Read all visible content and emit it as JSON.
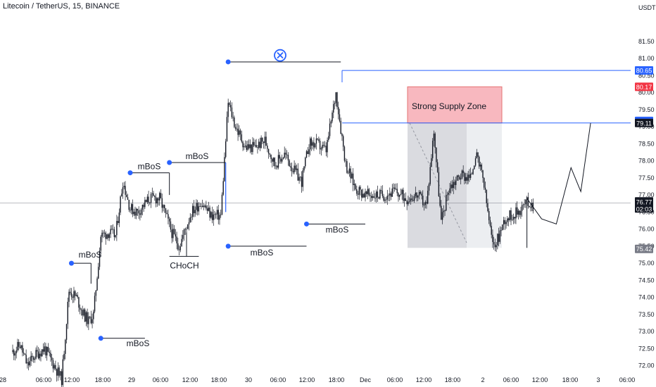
{
  "header": {
    "title": "Litecoin / TetherUS, 15, BINANCE"
  },
  "colors": {
    "candle": "#131722",
    "marker": "#2962ff",
    "line": "#131722",
    "price_line": "#2962ff",
    "supply_fill": "#f8b8bf",
    "supply_border": "#e57373",
    "range_dark": "#dadbe0",
    "range_light": "#eceef1",
    "current_line": "#787b86",
    "tag_blue": "#2962ff",
    "tag_red": "#f23645",
    "tag_dark": "#131722",
    "tag_gray": "#787b86"
  },
  "icons": {
    "top_marker": "circle-x-icon"
  },
  "chart_data": {
    "type": "candlestick",
    "title": "Litecoin / TetherUS, 15, BINANCE",
    "currency": "USDT",
    "ylim": [
      71.6,
      82.1
    ],
    "grid": false,
    "x_ticks": [
      "28",
      "06:00",
      "12:00",
      "18:00",
      "29",
      "06:00",
      "12:00",
      "18:00",
      "30",
      "06:00",
      "12:00",
      "18:00",
      "Dec",
      "06:00",
      "12:00",
      "18:00",
      "2",
      "06:00",
      "12:00",
      "18:00",
      "3",
      "06:00"
    ],
    "y_ticks": [
      "81.50",
      "81.00",
      "80.50",
      "80.00",
      "79.50",
      "79.00",
      "78.50",
      "78.00",
      "77.50",
      "77.00",
      "76.50",
      "76.00",
      "75.50",
      "75.00",
      "74.50",
      "74.00",
      "73.50",
      "73.00",
      "72.50",
      "72.00"
    ],
    "price_tags": [
      {
        "label": "80.65",
        "value": 80.65,
        "style": "blue"
      },
      {
        "label": "80.17",
        "value": 80.17,
        "style": "red"
      },
      {
        "label": "79.17",
        "value": 79.17,
        "style": "blue"
      },
      {
        "label": "79.11",
        "value": 79.11,
        "style": "dark"
      },
      {
        "label": "75.42",
        "value": 75.42,
        "style": "gray"
      }
    ],
    "current_price": {
      "price": "76.77",
      "countdown": "02:03",
      "value": 76.77
    },
    "annotations": [
      {
        "text": "mBoS",
        "x": "28 12:00",
        "y": 75.0,
        "line_from": "28 12:00",
        "line_to": "28 16:00",
        "level": 75.0
      },
      {
        "text": "mBoS",
        "x": "28 18:00",
        "y": 72.8,
        "line_from": "28 18:00",
        "line_to": "29 03:00",
        "level": 72.8
      },
      {
        "text": "mBoS",
        "x": "29 00:00",
        "y": 77.65,
        "line_from": "29 00:00",
        "line_to": "29 08:00",
        "level": 77.65
      },
      {
        "text": "mBoS",
        "x": "29 08:00",
        "y": 77.95,
        "line_from": "29 08:00",
        "line_to": "29 19:30",
        "level": 77.95
      },
      {
        "text": "CHoCH",
        "x": "29 08:00",
        "y": 75.2,
        "line_from": "29 08:00",
        "line_to": "29 14:00",
        "level": 75.2
      },
      {
        "text": "mBoS",
        "x": "29 20:00",
        "y": 75.5,
        "line_from": "29 20:00",
        "line_to": "30 12:00",
        "level": 75.5
      },
      {
        "text": "mBoS",
        "x": "30 12:00",
        "y": 76.15,
        "line_from": "30 12:00",
        "line_to": "30 24:00",
        "level": 76.15
      },
      {
        "text": "Strong Supply Zone",
        "y_top": 80.17,
        "y_bottom": 79.11
      }
    ],
    "swing_high": {
      "value": 80.9,
      "from": "29 20:00",
      "to": "30 19:00"
    },
    "projection": [
      {
        "x": "2 09:00",
        "y": 75.45
      },
      {
        "x": "2 09:00",
        "y": 76.9
      },
      {
        "x": "2 12:00",
        "y": 76.3
      },
      {
        "x": "2 15:00",
        "y": 76.15
      },
      {
        "x": "2 18:00",
        "y": 77.8
      },
      {
        "x": "2 20:00",
        "y": 77.1
      },
      {
        "x": "2 22:00",
        "y": 79.11
      }
    ]
  }
}
